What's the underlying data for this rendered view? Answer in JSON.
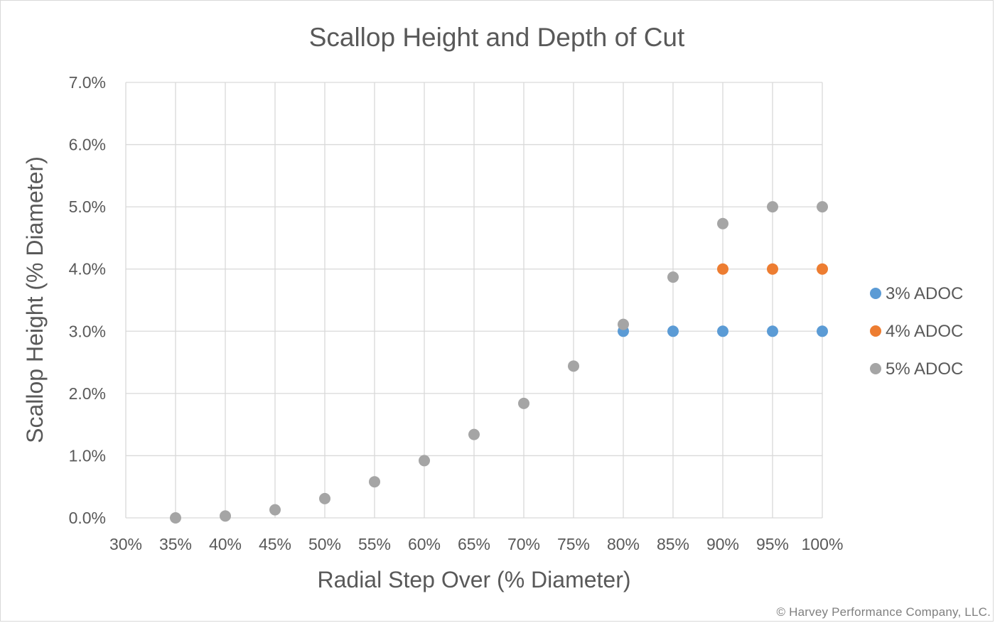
{
  "chart_data": {
    "type": "scatter",
    "title": "Scallop Height and Depth of Cut",
    "xlabel": "Radial Step Over (% Diameter)",
    "ylabel": "Scallop Height (% Diameter)",
    "xlim": [
      30,
      100
    ],
    "ylim": [
      0,
      7
    ],
    "x_ticks": [
      "30%",
      "35%",
      "40%",
      "45%",
      "50%",
      "55%",
      "60%",
      "65%",
      "70%",
      "75%",
      "80%",
      "85%",
      "90%",
      "95%",
      "100%"
    ],
    "x_tick_values": [
      30,
      35,
      40,
      45,
      50,
      55,
      60,
      65,
      70,
      75,
      80,
      85,
      90,
      95,
      100
    ],
    "y_ticks": [
      "0.0%",
      "1.0%",
      "2.0%",
      "3.0%",
      "4.0%",
      "5.0%",
      "6.0%",
      "7.0%"
    ],
    "y_tick_values": [
      0,
      1,
      2,
      3,
      4,
      5,
      6,
      7
    ],
    "grid": true,
    "legend_position": "right",
    "series": [
      {
        "name": "3% ADOC",
        "color": "#5b9bd5",
        "points": [
          [
            80,
            3.0
          ],
          [
            85,
            3.0
          ],
          [
            90,
            3.0
          ],
          [
            95,
            3.0
          ],
          [
            100,
            3.0
          ]
        ]
      },
      {
        "name": "4% ADOC",
        "color": "#ed7d31",
        "points": [
          [
            90,
            4.0
          ],
          [
            95,
            4.0
          ],
          [
            100,
            4.0
          ]
        ]
      },
      {
        "name": "5% ADOC",
        "color": "#a5a5a5",
        "points": [
          [
            35,
            0.0
          ],
          [
            40,
            0.03
          ],
          [
            45,
            0.13
          ],
          [
            50,
            0.31
          ],
          [
            55,
            0.58
          ],
          [
            60,
            0.92
          ],
          [
            65,
            1.34
          ],
          [
            70,
            1.84
          ],
          [
            75,
            2.44
          ],
          [
            80,
            3.11
          ],
          [
            85,
            3.87
          ],
          [
            90,
            4.73
          ],
          [
            95,
            5.0
          ],
          [
            100,
            5.0
          ]
        ]
      }
    ]
  },
  "footer": {
    "copyright": "© Harvey Performance Company, LLC."
  }
}
